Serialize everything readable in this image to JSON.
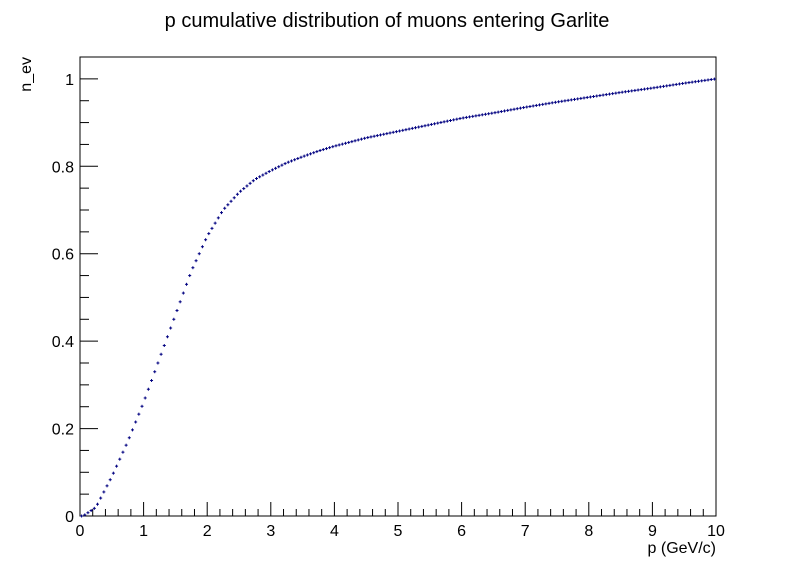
{
  "chart_data": {
    "type": "scatter",
    "title": "p cumulative distribution of muons entering Garlite",
    "xlabel": "p (GeV/c)",
    "ylabel": "n_ev",
    "xlim": [
      0,
      10
    ],
    "ylim": [
      0,
      1.05
    ],
    "x_ticks": [
      "0",
      "1",
      "2",
      "3",
      "4",
      "5",
      "6",
      "7",
      "8",
      "9",
      "10"
    ],
    "y_ticks": [
      "0",
      "0.2",
      "0.4",
      "0.6",
      "0.8",
      "1"
    ],
    "grid": false,
    "legend": "none",
    "marker_color": "#000080",
    "marker": "cross",
    "series": [
      {
        "x": [
          0.05,
          0.25,
          0.5,
          0.75,
          1.0,
          1.25,
          1.5,
          1.75,
          2.0,
          2.25,
          2.5,
          2.75,
          3.0,
          3.25,
          3.5,
          3.75,
          4.0,
          4.5,
          5.0,
          5.5,
          6.0,
          6.5,
          7.0,
          7.5,
          8.0,
          8.5,
          9.0,
          9.5,
          10.0
        ],
        "y": [
          0.0,
          0.02,
          0.09,
          0.17,
          0.26,
          0.36,
          0.46,
          0.56,
          0.64,
          0.7,
          0.74,
          0.77,
          0.79,
          0.808,
          0.822,
          0.835,
          0.846,
          0.865,
          0.88,
          0.895,
          0.91,
          0.922,
          0.935,
          0.947,
          0.958,
          0.969,
          0.979,
          0.99,
          1.0
        ]
      }
    ]
  }
}
